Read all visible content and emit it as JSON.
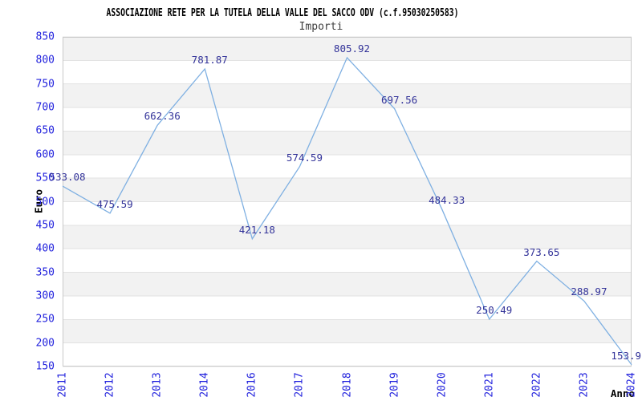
{
  "chart_data": {
    "type": "line",
    "title": "ASSOCIAZIONE RETE PER LA TUTELA DELLA VALLE DEL SACCO ODV (c.f.95030250583)",
    "subtitle": "Importi",
    "xlabel": "Anno",
    "ylabel": "Euro",
    "categories": [
      "2011",
      "2012",
      "2013",
      "2014",
      "2016",
      "2017",
      "2018",
      "2019",
      "2020",
      "2021",
      "2022",
      "2023",
      "2024"
    ],
    "values": [
      533.08,
      475.59,
      662.36,
      781.87,
      421.18,
      574.59,
      805.92,
      697.56,
      484.33,
      250.49,
      373.65,
      288.97,
      153.9
    ],
    "value_labels": [
      "533.08",
      "475.59",
      "662.36",
      "781.87",
      "421.18",
      "574.59",
      "805.92",
      "697.56",
      "484.33",
      "250.49",
      "373.65",
      "288.97",
      "153.9"
    ],
    "ylim": [
      150,
      850
    ],
    "ytick_step": 50,
    "grid": "horizontal gridlines with alternating shaded bands",
    "legend": "none",
    "colors": {
      "line": "#7fb0e2",
      "tick_labels": "#2222dd",
      "value_labels": "#333399",
      "band": "#f2f2f2",
      "gridline": "#e2e2e2",
      "border": "#c9c9c9",
      "title": "#000000",
      "subtitle": "#404040",
      "background": "#ffffff"
    }
  }
}
